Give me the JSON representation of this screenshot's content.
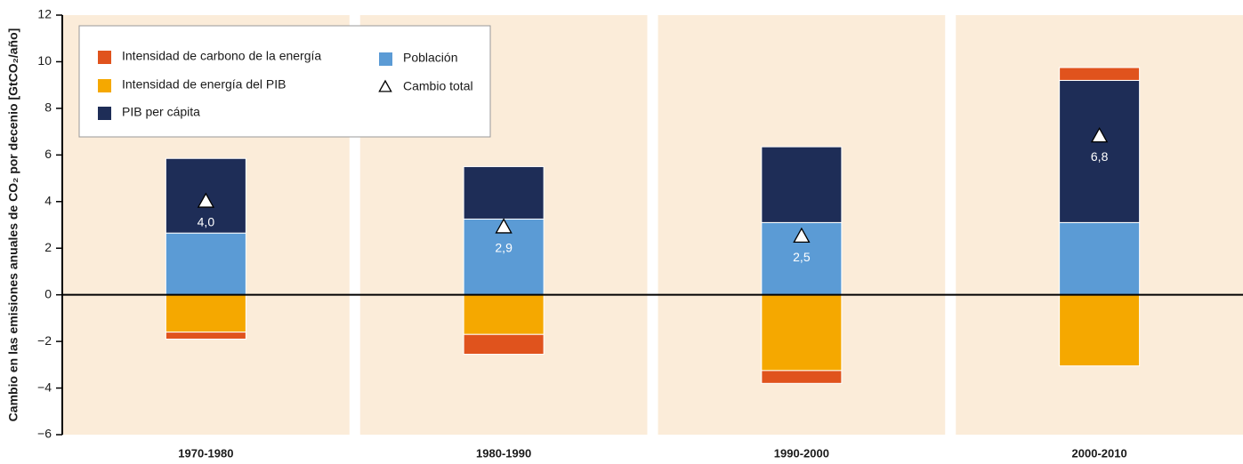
{
  "chart_data": {
    "type": "stacked-bar",
    "y_label": "Cambio en las emisiones anuales de CO₂ por decenio [GtCO₂/año]",
    "categories": [
      "1970-1980",
      "1980-1990",
      "1990-2000",
      "2000-2010"
    ],
    "series": [
      {
        "name": "Intensidad de carbono de la energía",
        "color": "#e0531d",
        "values": [
          -0.3,
          -0.85,
          -0.55,
          0.55
        ]
      },
      {
        "name": "Intensidad de energía del PIB",
        "color": "#f5a800",
        "values": [
          -1.6,
          -1.7,
          -3.25,
          -3.05
        ]
      },
      {
        "name": "PIB per cápita",
        "color": "#1e2d57",
        "values": [
          3.2,
          2.25,
          3.25,
          6.1
        ]
      },
      {
        "name": "Población",
        "color": "#5b9bd5",
        "values": [
          2.65,
          3.25,
          3.1,
          3.1
        ]
      }
    ],
    "total": {
      "name": "Cambio total",
      "values": [
        4.0,
        2.9,
        2.5,
        6.8
      ],
      "value_labels": [
        "4,0",
        "2,9",
        "2,5",
        "6,8"
      ]
    },
    "ylim": [
      -6,
      12
    ],
    "yticks": [
      {
        "value": -6,
        "label": "−6"
      },
      {
        "value": -4,
        "label": "−4"
      },
      {
        "value": -2,
        "label": "−2"
      },
      0,
      2,
      4,
      6,
      8,
      10,
      12
    ],
    "panel_color": "#fbecd9"
  }
}
